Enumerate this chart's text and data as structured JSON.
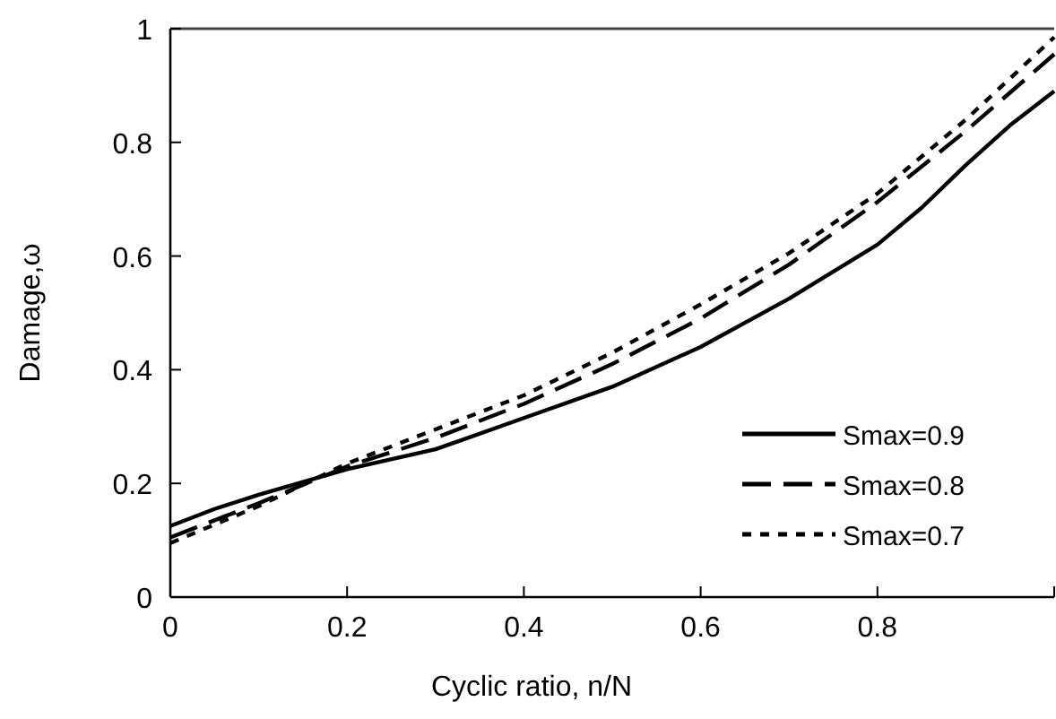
{
  "chart_data": {
    "type": "line",
    "xlabel": "Cyclic ratio, n/N",
    "ylabel": "Damage,ω",
    "xlim": [
      0,
      1
    ],
    "xticks": [
      0,
      0.2,
      0.4,
      0.6,
      0.8,
      {
        "value": 1,
        "label": null
      }
    ],
    "ylim": [
      0,
      1
    ],
    "yticks": [
      0,
      0.2,
      0.4,
      0.6,
      0.8,
      1
    ],
    "grid": false,
    "legend": "bottom right",
    "series": [
      {
        "name": "Smax=0.9",
        "color": "#000000",
        "line_style": "solid",
        "x": [
          0,
          0.05,
          0.1,
          0.2,
          0.3,
          0.4,
          0.5,
          0.6,
          0.7,
          0.8,
          0.85,
          0.9,
          0.95,
          1
        ],
        "values": [
          0.125,
          0.155,
          0.18,
          0.225,
          0.26,
          0.315,
          0.37,
          0.44,
          0.525,
          0.62,
          0.685,
          0.76,
          0.83,
          0.89
        ]
      },
      {
        "name": "Smax=0.8",
        "color": "#000000",
        "line_style": "dashed",
        "x": [
          0,
          0.1,
          0.2,
          0.3,
          0.4,
          0.5,
          0.6,
          0.7,
          0.8,
          0.9,
          1
        ],
        "values": [
          0.105,
          0.165,
          0.23,
          0.28,
          0.34,
          0.41,
          0.49,
          0.585,
          0.695,
          0.82,
          0.955
        ]
      },
      {
        "name": "Smax=0.7",
        "color": "#000000",
        "line_style": "dotted",
        "x": [
          0,
          0.1,
          0.2,
          0.3,
          0.4,
          0.5,
          0.6,
          0.7,
          0.8,
          0.9,
          1
        ],
        "values": [
          0.095,
          0.16,
          0.235,
          0.295,
          0.355,
          0.43,
          0.515,
          0.605,
          0.71,
          0.84,
          0.985
        ]
      }
    ]
  }
}
